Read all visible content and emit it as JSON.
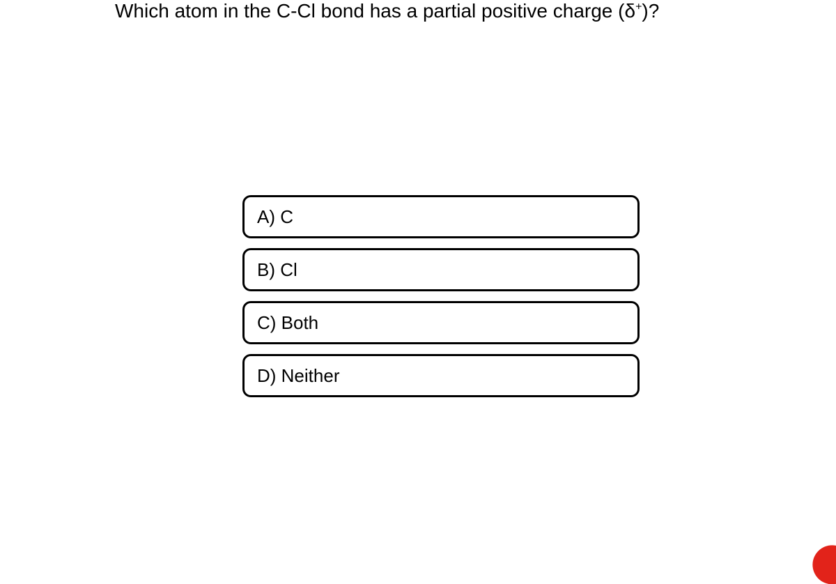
{
  "question": {
    "text_before_delta": "Which atom in the C-Cl bond has a partial positive charge (",
    "delta_symbol": "δ",
    "superscript": "+",
    "text_after_delta": ")?",
    "font_size": 28,
    "color": "#000000"
  },
  "options": [
    {
      "label": "A) C"
    },
    {
      "label": "B) Cl"
    },
    {
      "label": "C) Both"
    },
    {
      "label": "D) Neither"
    }
  ],
  "styling": {
    "option_border_color": "#000000",
    "option_border_width": 3,
    "option_border_radius": 12,
    "option_height": 62,
    "option_gap": 14,
    "option_font_size": 26,
    "option_text_color": "#000000",
    "option_background": "#ffffff",
    "container_width": 570,
    "background_color": "#ffffff",
    "accent_circle_color": "#e2231a"
  }
}
